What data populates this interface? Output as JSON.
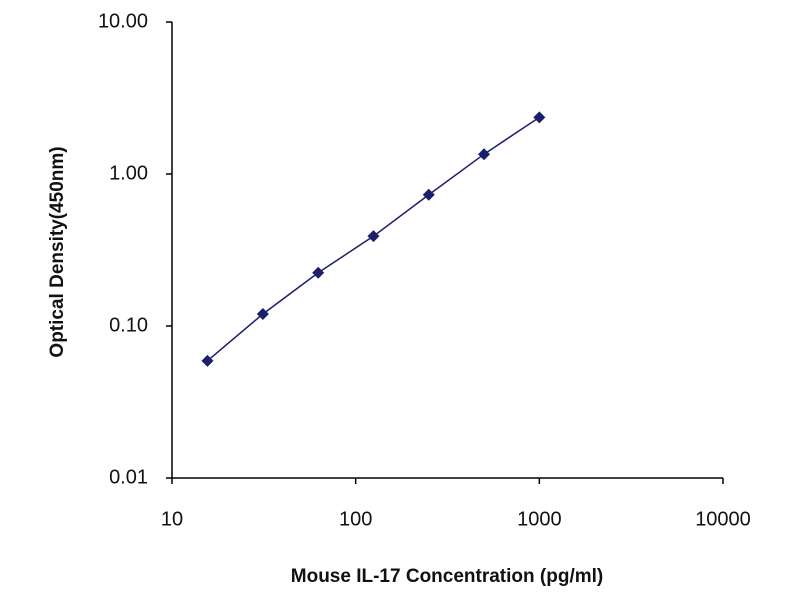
{
  "chart_data": {
    "type": "line",
    "xlabel": "Mouse IL-17 Concentration (pg/ml)",
    "ylabel": "Optical Density(450nm)",
    "x": [
      15.6,
      31.25,
      62.5,
      125,
      250,
      500,
      1000
    ],
    "values": [
      0.059,
      0.12,
      0.224,
      0.39,
      0.73,
      1.35,
      2.36
    ],
    "color": "#1c1f6b",
    "marker": "diamond",
    "xscale": "log",
    "yscale": "log",
    "xlim": [
      10,
      10000
    ],
    "ylim": [
      0.01,
      10
    ],
    "xticks": [
      10,
      100,
      1000,
      10000
    ],
    "yticks": [
      {
        "value": 0.01,
        "label": "0.01"
      },
      {
        "value": 0.1,
        "label": "0.10"
      },
      {
        "value": 1,
        "label": "1.00"
      },
      {
        "value": 10,
        "label": "10.00"
      }
    ],
    "grid": false
  }
}
